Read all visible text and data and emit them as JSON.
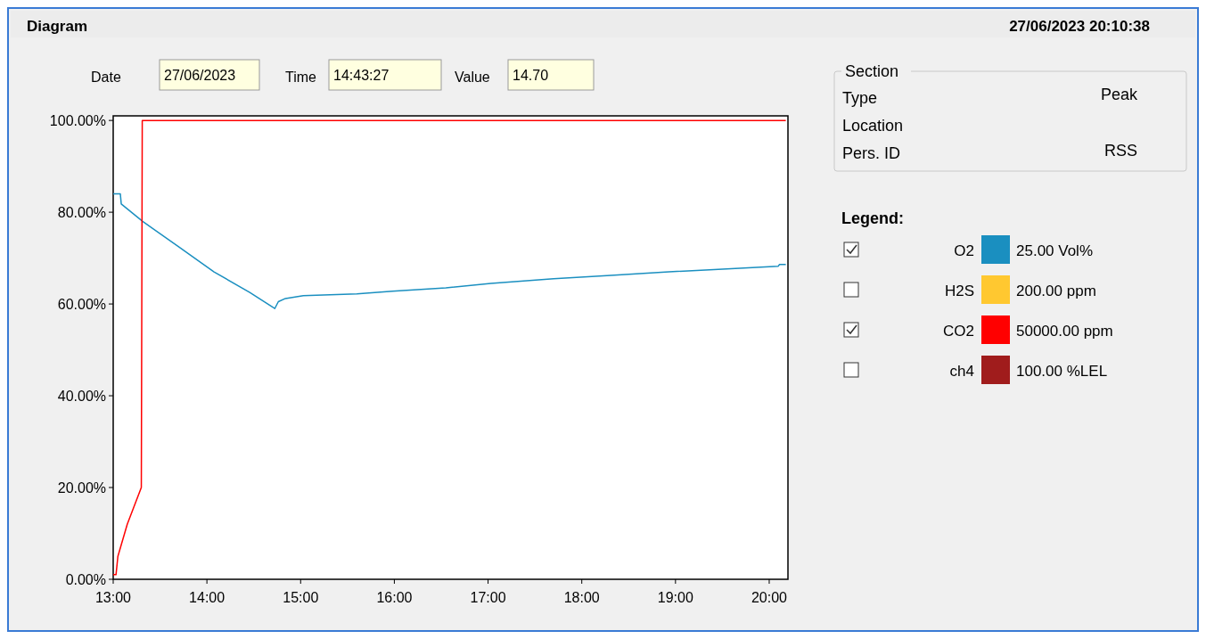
{
  "chart_data": {
    "type": "line",
    "title": "Diagram",
    "subtitle": "27/06/2023 20:10:38",
    "legend_title": "Legend:",
    "legend": "right",
    "grid": false,
    "marker": "none",
    "line_style": "solid",
    "annotations": [
      "Date",
      "27/06/2023",
      "Time",
      "14:43:27",
      "Value",
      "14.70",
      "Section",
      "Type",
      "Peak",
      "Location",
      "Pers. ID",
      "RSS",
      "25.00 Vol%",
      "200.00 ppm",
      "50000.00 ppm",
      "100.00 %LEL"
    ],
    "xlim": [
      13,
      20.2
    ],
    "xticks": [
      {
        "value": 13,
        "label": "13:00"
      },
      {
        "value": 14,
        "label": "14:00"
      },
      {
        "value": 15,
        "label": "15:00"
      },
      {
        "value": 16,
        "label": "16:00"
      },
      {
        "value": 17,
        "label": "17:00"
      },
      {
        "value": 18,
        "label": "18:00"
      },
      {
        "value": 19,
        "label": "19:00"
      },
      {
        "value": 20,
        "label": "20:00"
      }
    ],
    "ylim": [
      0,
      101
    ],
    "yticks": [
      {
        "value": 0,
        "label": "0.00%"
      },
      {
        "value": 20,
        "label": "20.00%"
      },
      {
        "value": 40,
        "label": "40.00%"
      },
      {
        "value": 60,
        "label": "60.00%"
      },
      {
        "value": 80,
        "label": "80.00%"
      },
      {
        "value": 100,
        "label": "100.00%"
      }
    ],
    "series": [
      {
        "name": "O2",
        "color": "#1a8fc0",
        "x": [
          13,
          13.076,
          13.086,
          13.314,
          13.695,
          14.076,
          14.457,
          14.724,
          14.762,
          14.838,
          15.029,
          15.6,
          15.98,
          16.55,
          17.03,
          17.7,
          18.27,
          18.93,
          19.41,
          20.095,
          20.11,
          20.177
        ],
        "values": [
          84,
          84,
          81.8,
          78,
          72.5,
          67,
          62.5,
          59,
          60.5,
          61.2,
          61.8,
          62.2,
          62.8,
          63.5,
          64.5,
          65.5,
          66.2,
          67,
          67.5,
          68.2,
          68.6,
          68.6
        ]
      },
      {
        "name": "H2S",
        "color": "#ffc830"
      },
      {
        "name": "CO2",
        "color": "#ff0000",
        "x": [
          13,
          13.03,
          13.05,
          13.15,
          13.3,
          13.31,
          20.177
        ],
        "values": [
          1,
          1,
          5,
          12,
          20,
          100,
          100
        ]
      },
      {
        "name": "ch4",
        "color": "#a01c1c"
      }
    ]
  }
}
